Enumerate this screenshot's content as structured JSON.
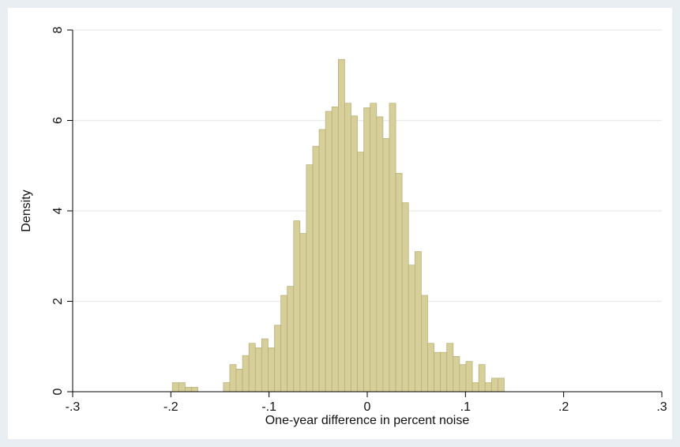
{
  "chart_data": {
    "type": "bar",
    "subtype": "histogram",
    "title": "",
    "xlabel": "One-year difference in percent noise",
    "ylabel": "Density",
    "xlim": [
      -0.3,
      0.3
    ],
    "ylim": [
      0,
      8
    ],
    "x_ticks": [
      -0.3,
      -0.2,
      -0.1,
      0,
      0.1,
      0.2,
      0.3
    ],
    "x_tick_labels": [
      "-.3",
      "-.2",
      "-.1",
      "0",
      ".1",
      ".2",
      ".3"
    ],
    "y_ticks": [
      0,
      2,
      4,
      6,
      8
    ],
    "y_tick_labels": [
      "0",
      "2",
      "4",
      "6",
      "8"
    ],
    "grid": true,
    "legend": "none",
    "bar_color": "#d6cf99",
    "bar_edge_color": "#b4ac72",
    "bin_width": 0.0065,
    "bins": [
      {
        "x": -0.1985,
        "y": 0.2
      },
      {
        "x": -0.192,
        "y": 0.2
      },
      {
        "x": -0.1855,
        "y": 0.1
      },
      {
        "x": -0.179,
        "y": 0.1
      },
      {
        "x": -0.1465,
        "y": 0.2
      },
      {
        "x": -0.14,
        "y": 0.6
      },
      {
        "x": -0.1335,
        "y": 0.5
      },
      {
        "x": -0.127,
        "y": 0.8
      },
      {
        "x": -0.1205,
        "y": 1.07
      },
      {
        "x": -0.114,
        "y": 0.97
      },
      {
        "x": -0.1075,
        "y": 1.17
      },
      {
        "x": -0.101,
        "y": 0.97
      },
      {
        "x": -0.0945,
        "y": 1.47
      },
      {
        "x": -0.088,
        "y": 2.13
      },
      {
        "x": -0.0815,
        "y": 2.33
      },
      {
        "x": -0.075,
        "y": 3.78
      },
      {
        "x": -0.0685,
        "y": 3.5
      },
      {
        "x": -0.062,
        "y": 5.02
      },
      {
        "x": -0.0555,
        "y": 5.43
      },
      {
        "x": -0.049,
        "y": 5.8
      },
      {
        "x": -0.0425,
        "y": 6.2
      },
      {
        "x": -0.036,
        "y": 6.3
      },
      {
        "x": -0.0295,
        "y": 7.35
      },
      {
        "x": -0.023,
        "y": 6.38
      },
      {
        "x": -0.0165,
        "y": 6.1
      },
      {
        "x": -0.01,
        "y": 5.3
      },
      {
        "x": -0.0035,
        "y": 6.28
      },
      {
        "x": 0.003,
        "y": 6.38
      },
      {
        "x": 0.0095,
        "y": 6.08
      },
      {
        "x": 0.016,
        "y": 5.6
      },
      {
        "x": 0.0225,
        "y": 6.38
      },
      {
        "x": 0.029,
        "y": 4.83
      },
      {
        "x": 0.0355,
        "y": 4.18
      },
      {
        "x": 0.042,
        "y": 2.8
      },
      {
        "x": 0.0485,
        "y": 3.1
      },
      {
        "x": 0.055,
        "y": 2.13
      },
      {
        "x": 0.0615,
        "y": 1.07
      },
      {
        "x": 0.068,
        "y": 0.87
      },
      {
        "x": 0.0745,
        "y": 0.87
      },
      {
        "x": 0.081,
        "y": 1.07
      },
      {
        "x": 0.0875,
        "y": 0.78
      },
      {
        "x": 0.094,
        "y": 0.6
      },
      {
        "x": 0.1005,
        "y": 0.67
      },
      {
        "x": 0.107,
        "y": 0.2
      },
      {
        "x": 0.1135,
        "y": 0.6
      },
      {
        "x": 0.12,
        "y": 0.2
      },
      {
        "x": 0.1265,
        "y": 0.3
      },
      {
        "x": 0.133,
        "y": 0.3
      }
    ]
  }
}
